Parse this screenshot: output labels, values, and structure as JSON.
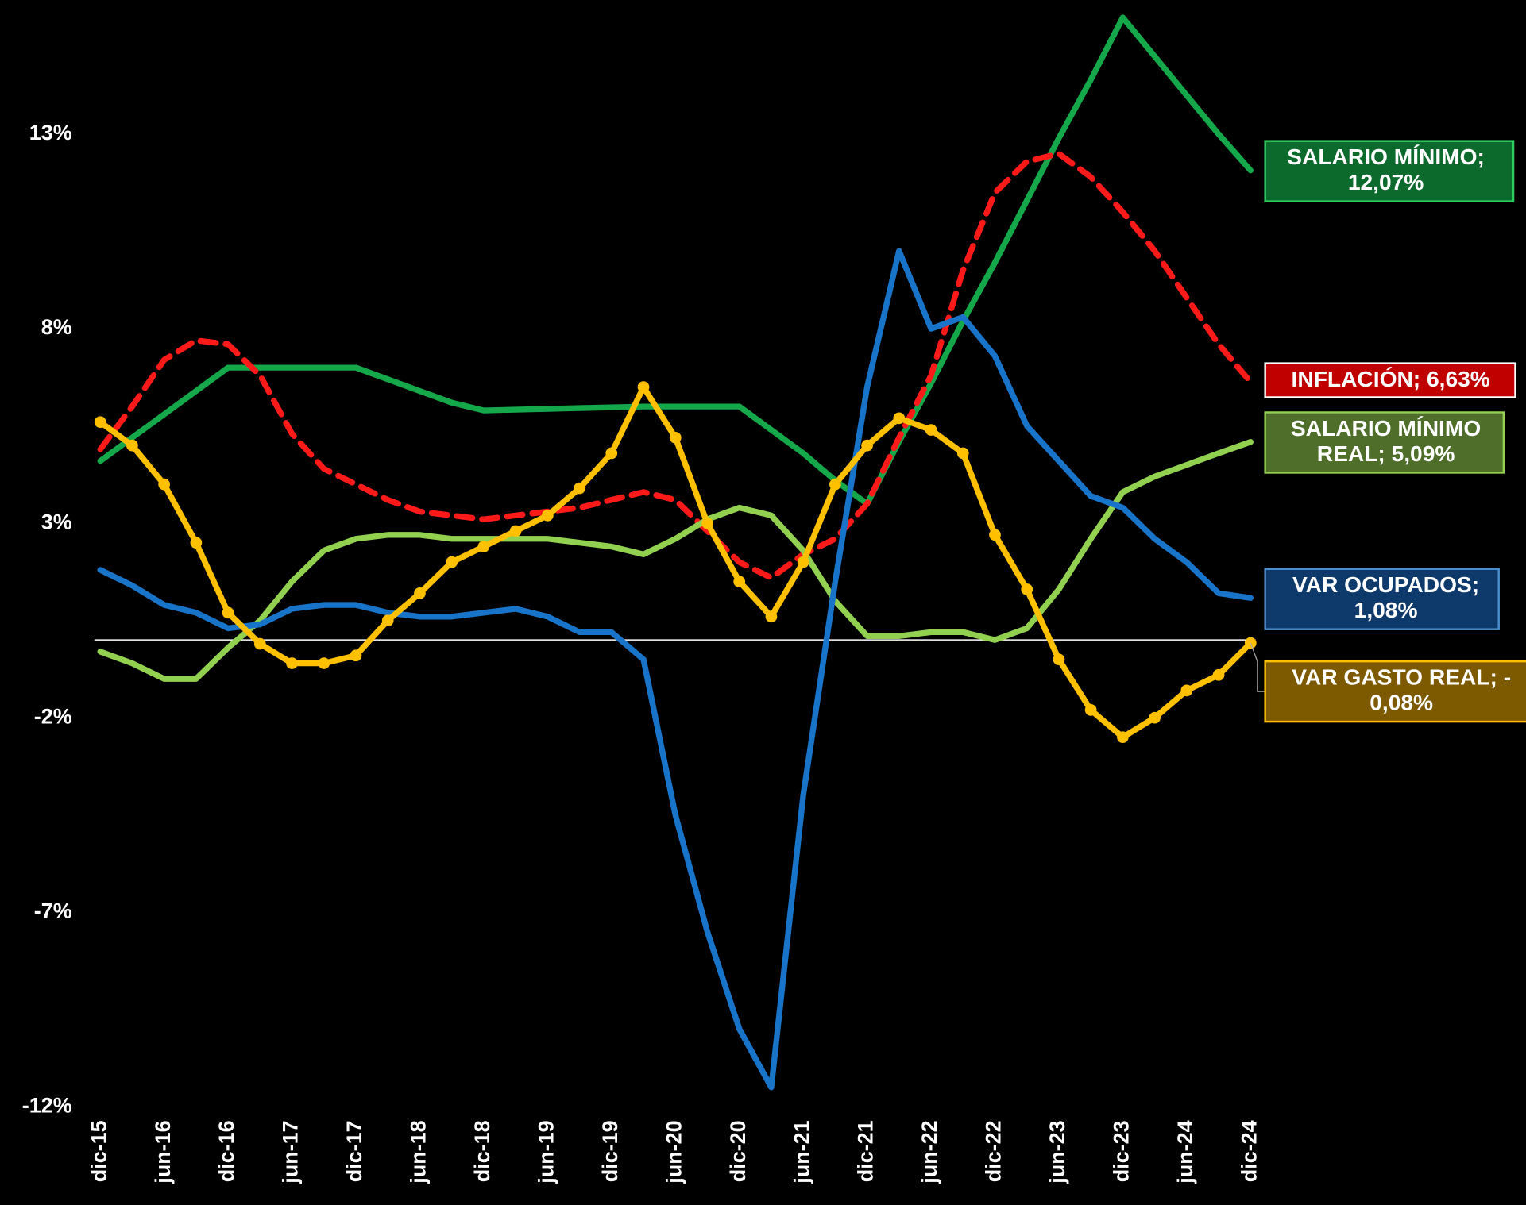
{
  "chart_data": {
    "type": "line",
    "categories": [
      "dic-15",
      null,
      "jun-16",
      null,
      "dic-16",
      null,
      "jun-17",
      null,
      "dic-17",
      null,
      "jun-18",
      null,
      "dic-18",
      null,
      "jun-19",
      null,
      "dic-19",
      null,
      "jun-20",
      null,
      "dic-20",
      null,
      "jun-21",
      null,
      "dic-21",
      null,
      "jun-22",
      null,
      "dic-22",
      null,
      "jun-23",
      null,
      "dic-23",
      null,
      "jun-24",
      null,
      "dic-24"
    ],
    "ylim": [
      -12,
      16.45
    ],
    "yticks": [
      {
        "value": -12,
        "label": "-12%"
      },
      {
        "value": -7,
        "label": "-7%"
      },
      {
        "value": -2,
        "label": "-2%"
      },
      {
        "value": 3,
        "label": "3%"
      },
      {
        "value": 8,
        "label": "8%"
      },
      {
        "value": 13,
        "label": "13%"
      }
    ],
    "zero_line": true,
    "series": [
      {
        "name": "SALARIO MÍNIMO",
        "color": "#14a84a",
        "style": "solid",
        "end_label": [
          "SALARIO MÍNIMO;",
          "12,07%"
        ],
        "label_fill": "#0b6a2c",
        "label_border": "#2ecc5f",
        "values": [
          4.6,
          5.2,
          5.8,
          6.4,
          7.0,
          7.0,
          7.0,
          7.0,
          7.0,
          6.7,
          6.4,
          6.1,
          5.9,
          5.92,
          5.94,
          5.96,
          5.98,
          6.0,
          6.0,
          6.0,
          6.0,
          5.4,
          4.8,
          4.1,
          3.5,
          5.1,
          6.6,
          8.2,
          9.7,
          11.3,
          12.9,
          14.4,
          16.0,
          15.0,
          14.0,
          13.0,
          12.07
        ]
      },
      {
        "name": "INFLACIÓN",
        "color": "#ff1a1a",
        "style": "dashed",
        "end_label": [
          "INFLACIÓN; 6,63%"
        ],
        "label_fill": "#c00000",
        "label_border": "#ffffff",
        "values": [
          4.9,
          6.0,
          7.2,
          7.7,
          7.6,
          6.8,
          5.3,
          4.4,
          4.0,
          3.6,
          3.3,
          3.2,
          3.1,
          3.2,
          3.3,
          3.4,
          3.6,
          3.8,
          3.6,
          2.8,
          2.0,
          1.6,
          2.2,
          2.6,
          3.5,
          5.2,
          6.8,
          9.5,
          11.5,
          12.3,
          12.5,
          11.9,
          11.0,
          10.0,
          8.8,
          7.6,
          6.63
        ]
      },
      {
        "name": "SALARIO MÍNIMO REAL",
        "color": "#92d050",
        "style": "solid",
        "end_label": [
          "SALARIO MÍNIMO",
          "REAL; 5,09%"
        ],
        "label_fill": "#4e6e2a",
        "label_border": "#92d050",
        "values": [
          -0.3,
          -0.6,
          -1.0,
          -1.0,
          -0.2,
          0.5,
          1.5,
          2.3,
          2.6,
          2.7,
          2.7,
          2.6,
          2.6,
          2.6,
          2.6,
          2.5,
          2.4,
          2.2,
          2.6,
          3.1,
          3.4,
          3.2,
          2.3,
          1.0,
          0.1,
          0.1,
          0.2,
          0.2,
          0.0,
          0.3,
          1.3,
          2.6,
          3.8,
          4.2,
          4.5,
          4.8,
          5.09
        ]
      },
      {
        "name": "VAR OCUPADOS",
        "color": "#1874c8",
        "style": "solid",
        "end_label": [
          "VAR OCUPADOS;",
          "1,08%"
        ],
        "label_fill": "#0d3a6b",
        "label_border": "#4a90d0",
        "values": [
          1.8,
          1.4,
          0.9,
          0.7,
          0.3,
          0.4,
          0.8,
          0.9,
          0.9,
          0.7,
          0.6,
          0.6,
          0.7,
          0.8,
          0.6,
          0.2,
          0.2,
          -0.5,
          -4.5,
          -7.5,
          -10.0,
          -11.5,
          -4.0,
          1.5,
          6.5,
          10.0,
          8.0,
          8.3,
          7.3,
          5.5,
          4.6,
          3.7,
          3.4,
          2.6,
          2.0,
          1.2,
          1.08
        ]
      },
      {
        "name": "VAR GASTO REAL",
        "color": "#ffc000",
        "style": "dotted",
        "end_label": [
          "VAR GASTO REAL; -",
          "0,08%"
        ],
        "label_fill": "#7d5a00",
        "label_border": "#ffc000",
        "values": [
          5.6,
          5.0,
          4.0,
          2.5,
          0.7,
          -0.1,
          -0.6,
          -0.6,
          -0.4,
          0.5,
          1.2,
          2.0,
          2.4,
          2.8,
          3.2,
          3.9,
          4.8,
          6.5,
          5.2,
          3.0,
          1.5,
          0.6,
          2.0,
          4.0,
          5.0,
          5.7,
          5.4,
          4.8,
          2.7,
          1.3,
          -0.5,
          -1.8,
          -2.5,
          -2.0,
          -1.3,
          -0.9,
          -0.08
        ]
      }
    ]
  }
}
